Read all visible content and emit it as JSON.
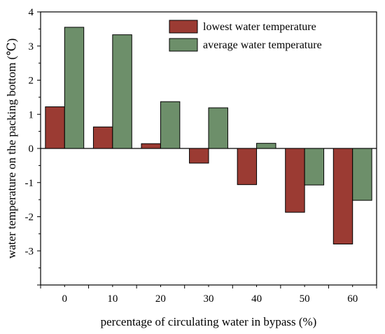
{
  "chart_data": {
    "type": "bar",
    "categories": [
      "0",
      "10",
      "20",
      "30",
      "40",
      "50",
      "60"
    ],
    "series": [
      {
        "name": "lowest water temperature",
        "color": "#9b3b33",
        "values": [
          1.22,
          0.63,
          0.14,
          -0.43,
          -1.06,
          -1.87,
          -2.8
        ]
      },
      {
        "name": "average water temperature",
        "color": "#6d8f6a",
        "values": [
          3.55,
          3.33,
          1.37,
          1.19,
          0.15,
          -1.07,
          -1.52
        ]
      }
    ],
    "xlabel": "percentage of circulating water in bypass (%)",
    "ylabel": "water temperature on the packing bottom (℃)",
    "ylim": [
      -4,
      4
    ],
    "yticks": [
      4,
      3,
      2,
      1,
      0,
      -1,
      -2,
      -3
    ],
    "grid": false,
    "legend_position": "top-right",
    "zero_line": true
  }
}
